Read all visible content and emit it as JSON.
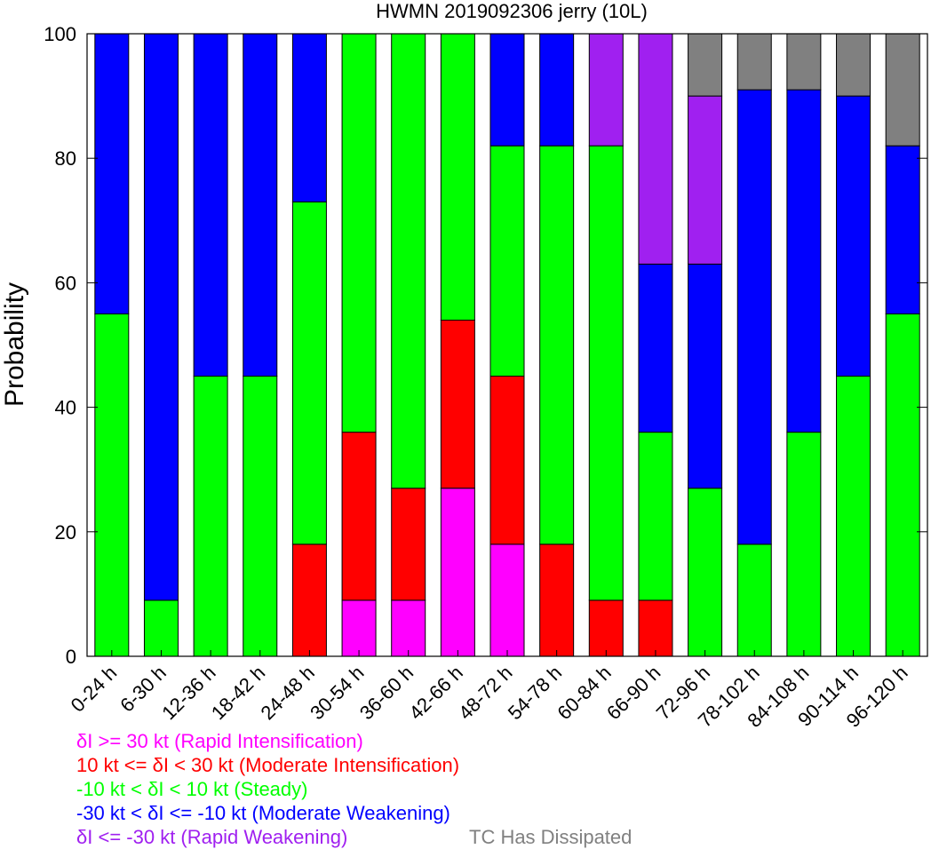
{
  "chart_data": {
    "type": "bar",
    "stacked": true,
    "title": "HWMN 2019092306 jerry (10L)",
    "xlabel": "",
    "ylabel": "Probability",
    "ylim": [
      0,
      100
    ],
    "yticks": [
      0,
      20,
      40,
      60,
      80,
      100
    ],
    "grid": false,
    "categories": [
      "0-24 h",
      "6-30 h",
      "12-36 h",
      "18-42 h",
      "24-48 h",
      "30-54 h",
      "36-60 h",
      "42-66 h",
      "48-72 h",
      "54-78 h",
      "60-84 h",
      "66-90 h",
      "72-96 h",
      "78-102 h",
      "84-108 h",
      "90-114 h",
      "96-120 h"
    ],
    "series": [
      {
        "name": "δI >= 30 kt (Rapid Intensification)",
        "color": "#ff00ff",
        "values": [
          0,
          0,
          0,
          0,
          0,
          9,
          9,
          27,
          18,
          0,
          0,
          0,
          0,
          0,
          0,
          0,
          0
        ]
      },
      {
        "name": "10 kt <= δI < 30 kt (Moderate Intensification)",
        "color": "#ff0000",
        "values": [
          0,
          0,
          0,
          0,
          18,
          27,
          18,
          27,
          27,
          18,
          9,
          9,
          0,
          0,
          0,
          0,
          0
        ]
      },
      {
        "name": "-10 kt < δI < 10 kt (Steady)",
        "color": "#00ff00",
        "values": [
          55,
          9,
          45,
          45,
          55,
          64,
          73,
          46,
          37,
          64,
          73,
          27,
          27,
          18,
          36,
          45,
          55
        ]
      },
      {
        "name": "-30 kt < δI <= -10 kt (Moderate Weakening)",
        "color": "#0000ff",
        "values": [
          45,
          91,
          55,
          55,
          27,
          0,
          0,
          0,
          18,
          18,
          0,
          27,
          36,
          73,
          55,
          45,
          27
        ]
      },
      {
        "name": "δI <= -30 kt (Rapid Weakening)",
        "color": "#a020f0",
        "values": [
          0,
          0,
          0,
          0,
          0,
          0,
          0,
          0,
          0,
          0,
          18,
          37,
          27,
          0,
          0,
          0,
          0
        ]
      },
      {
        "name": "TC Has Dissipated",
        "color": "#808080",
        "values": [
          0,
          0,
          0,
          0,
          0,
          0,
          0,
          0,
          0,
          0,
          0,
          0,
          10,
          9,
          9,
          10,
          18
        ]
      }
    ]
  }
}
